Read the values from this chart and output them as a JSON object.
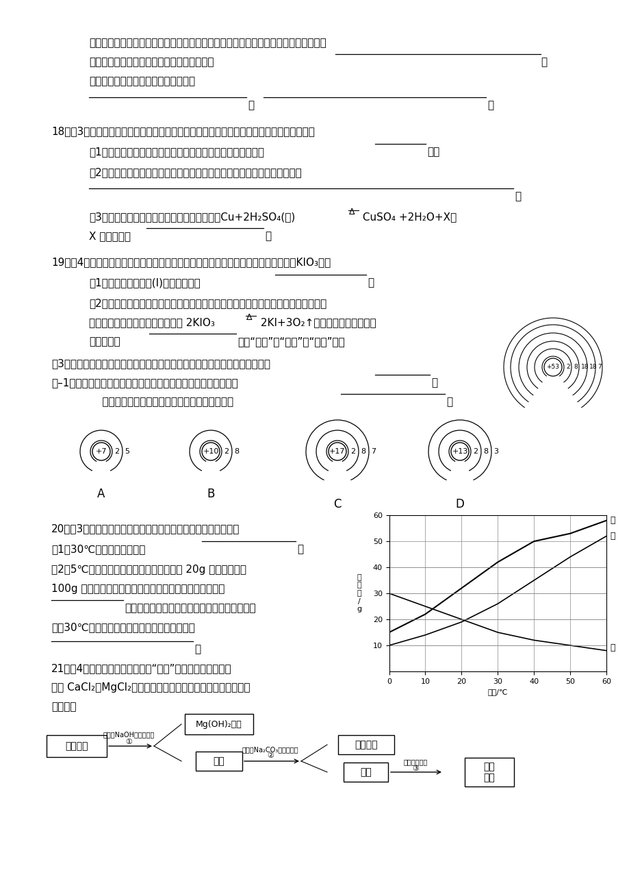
{
  "page_bg": "#ffffff",
  "text_color": "#1a1a1a",
  "font_size_main": 11,
  "solubility": {
    "x": [
      0,
      10,
      20,
      30,
      40,
      50,
      60
    ],
    "jia": [
      15,
      22,
      32,
      42,
      50,
      53,
      58
    ],
    "yi": [
      10,
      14,
      19,
      26,
      35,
      44,
      52
    ],
    "bing": [
      30,
      25,
      20,
      15,
      12,
      10,
      8
    ],
    "xlim": [
      0,
      60
    ],
    "ylim": [
      0,
      60
    ],
    "xticks": [
      0,
      10,
      20,
      30,
      40,
      50,
      60
    ],
    "yticks": [
      10,
      20,
      30,
      40,
      50,
      60
    ]
  }
}
